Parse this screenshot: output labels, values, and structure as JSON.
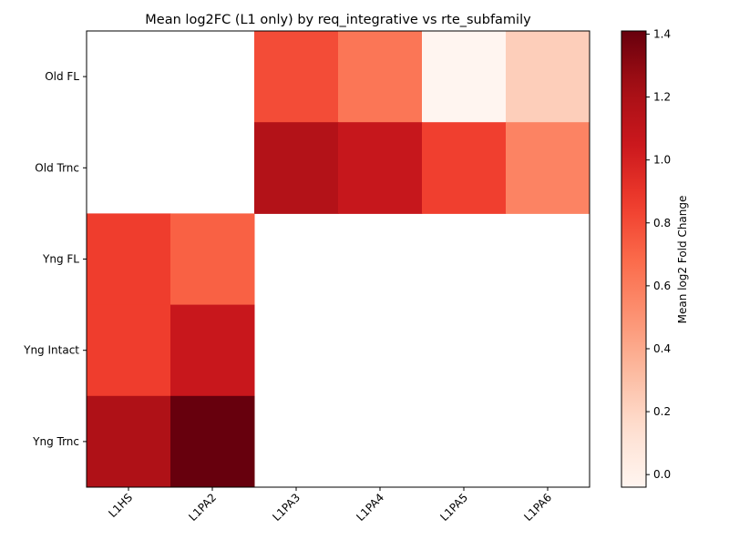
{
  "chart_data": {
    "type": "heatmap",
    "title": "Mean log2FC (L1 only) by req_integrative vs rte_subfamily",
    "xlabel": "",
    "ylabel": "",
    "x_categories": [
      "L1HS",
      "L1PA2",
      "L1PA3",
      "L1PA4",
      "L1PA5",
      "L1PA6"
    ],
    "y_categories": [
      "Old FL",
      "Old Trnc",
      "Yng FL",
      "Yng Intact",
      "Yng Trnc"
    ],
    "values": [
      [
        null,
        null,
        0.8,
        0.63,
        -0.04,
        0.23
      ],
      [
        null,
        null,
        1.16,
        1.07,
        0.85,
        0.57
      ],
      [
        0.86,
        0.72,
        null,
        null,
        null,
        null
      ],
      [
        0.86,
        1.06,
        null,
        null,
        null,
        null
      ],
      [
        1.18,
        1.41,
        null,
        null,
        null,
        null
      ]
    ],
    "colorbar": {
      "label": "Mean log2 Fold Change",
      "range": [
        -0.04,
        1.41
      ],
      "ticks": [
        "0.0",
        "0.2",
        "0.4",
        "0.6",
        "0.8",
        "1.0",
        "1.2",
        "1.4"
      ],
      "tick_values": [
        0.0,
        0.2,
        0.4,
        0.6,
        0.8,
        1.0,
        1.2,
        1.4
      ],
      "colormap": "Reds"
    },
    "grid": false
  }
}
